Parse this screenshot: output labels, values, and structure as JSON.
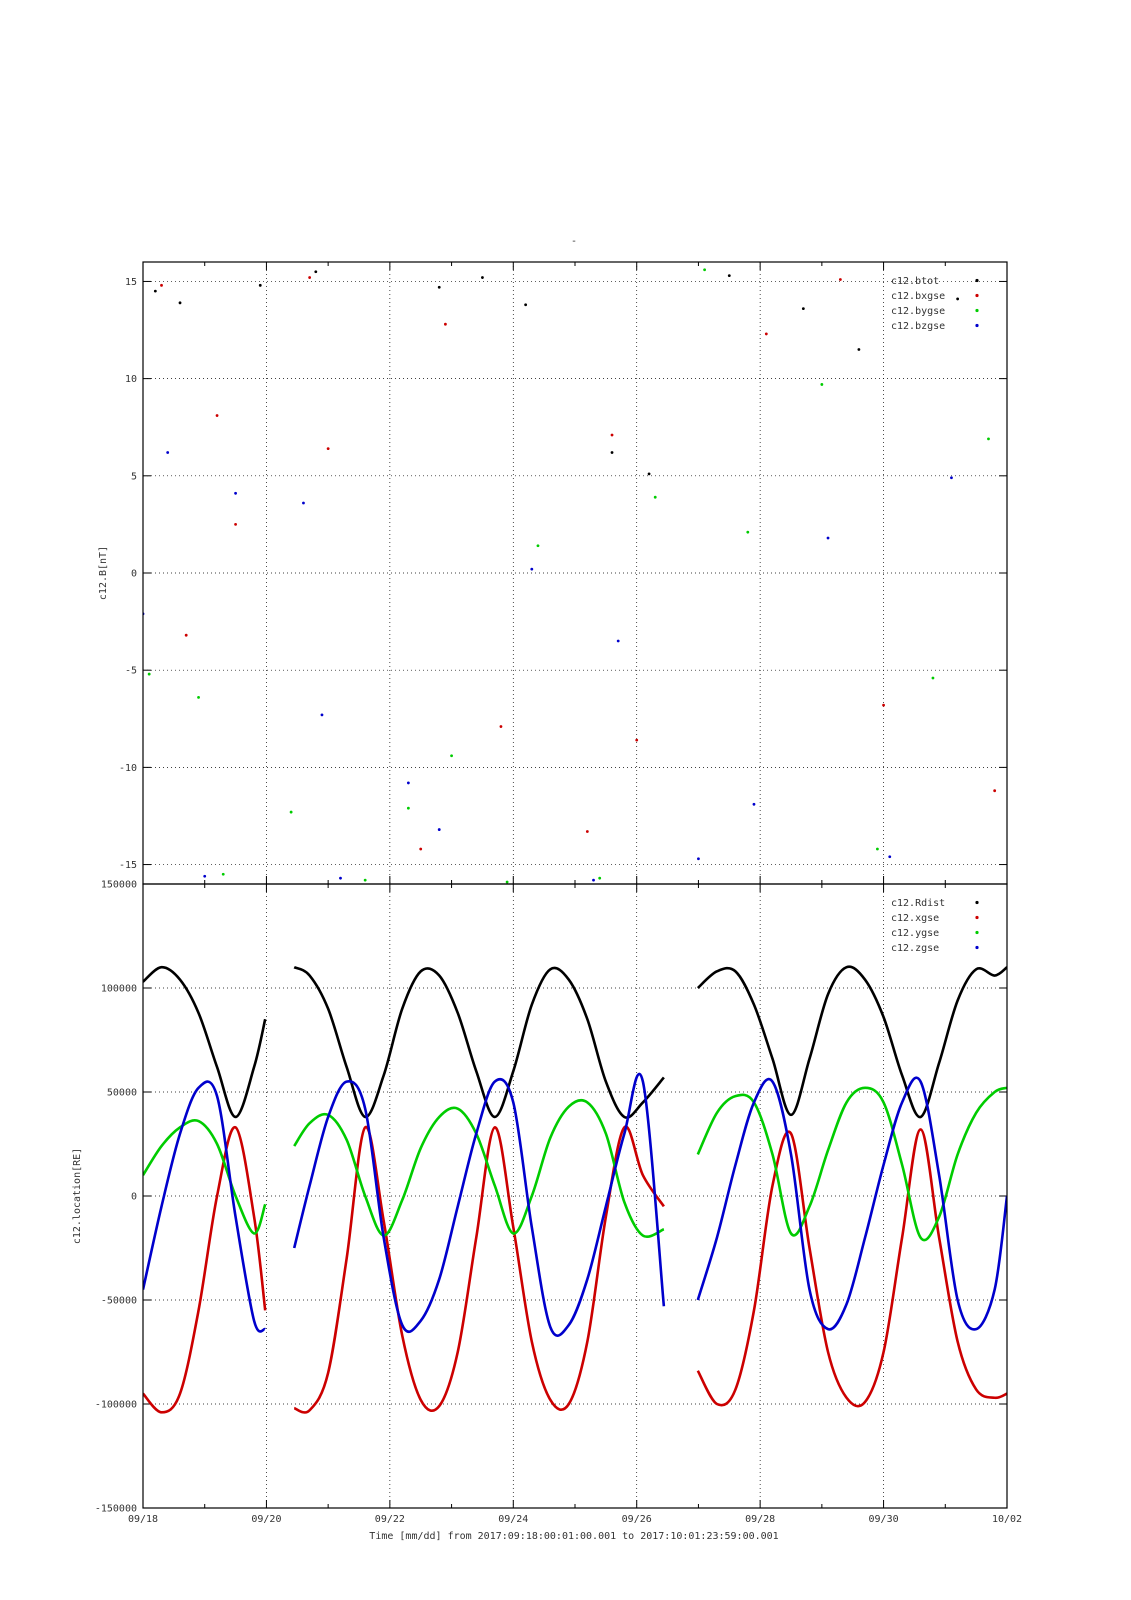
{
  "colors": {
    "black": "#000000",
    "red": "#cc0000",
    "green": "#00cc00",
    "blue": "#0000cc"
  },
  "top_title": "-",
  "footer_xlabel": "Time [mm/dd]  from 2017:09:18:00:01:00.001  to  2017:10:01:23:59:00.001",
  "chart_data": [
    {
      "type": "scatter",
      "ylabel": "c12.B[nT]",
      "ylim": [
        -16,
        16
      ],
      "yticks": [
        -15,
        -10,
        -5,
        0,
        5,
        10,
        15
      ],
      "ytick_labels": [
        "-15",
        "-10",
        "-5",
        "0",
        "5",
        "10",
        "15"
      ],
      "xlim": [
        0,
        14
      ],
      "grid": true,
      "legend": "top-right",
      "series": [
        {
          "name": "c12.btot",
          "color": "#000000",
          "x": [
            0.2,
            0.6,
            1.9,
            2.8,
            4.8,
            5.5,
            6.2,
            7.6,
            8.2,
            9.5,
            10.7,
            11.6,
            13.2
          ],
          "y": [
            14.5,
            13.9,
            14.8,
            15.5,
            14.7,
            15.2,
            13.8,
            6.2,
            5.1,
            15.3,
            13.6,
            11.5,
            14.1
          ]
        },
        {
          "name": "c12.bxgse",
          "color": "#cc0000",
          "x": [
            0.3,
            0.7,
            1.2,
            1.5,
            2.7,
            3.0,
            4.5,
            4.9,
            5.8,
            7.2,
            7.6,
            8.0,
            10.1,
            11.3,
            12.0,
            13.8
          ],
          "y": [
            14.8,
            -3.2,
            8.1,
            2.5,
            15.2,
            6.4,
            -14.2,
            12.8,
            -7.9,
            -13.3,
            7.1,
            -8.6,
            12.3,
            15.1,
            -6.8,
            -11.2
          ]
        },
        {
          "name": "c12.bygse",
          "color": "#00cc00",
          "x": [
            0.1,
            0.9,
            1.3,
            2.4,
            3.6,
            4.3,
            5.0,
            5.9,
            6.4,
            7.4,
            8.3,
            9.1,
            9.8,
            11.0,
            11.9,
            12.8,
            13.7
          ],
          "y": [
            -5.2,
            -6.4,
            -15.5,
            -12.3,
            -15.8,
            -12.1,
            -9.4,
            -15.9,
            1.4,
            -15.7,
            3.9,
            15.6,
            2.1,
            9.7,
            -14.2,
            -5.4,
            6.9
          ]
        },
        {
          "name": "c12.bzgse",
          "color": "#0000cc",
          "x": [
            0.0,
            0.4,
            1.0,
            1.5,
            2.6,
            2.9,
            3.2,
            4.3,
            4.8,
            6.3,
            7.3,
            7.7,
            9.0,
            9.9,
            11.1,
            12.1,
            13.1
          ],
          "y": [
            -2.1,
            6.2,
            -15.6,
            4.1,
            3.6,
            -7.3,
            -15.7,
            -10.8,
            -13.2,
            0.2,
            -15.8,
            -3.5,
            -14.7,
            -11.9,
            1.8,
            -14.6,
            4.9
          ]
        }
      ]
    },
    {
      "type": "line",
      "ylabel": "c12.location[RE]",
      "ylim": [
        -150000,
        150000
      ],
      "yticks": [
        -150000,
        -100000,
        -50000,
        0,
        50000,
        100000,
        150000
      ],
      "ytick_labels": [
        "-150000",
        "-100000",
        "-50000",
        "0",
        "50000",
        "100000",
        "150000"
      ],
      "xlim": [
        0,
        14
      ],
      "xticks": [
        0,
        2,
        4,
        6,
        8,
        10,
        12,
        14
      ],
      "xtick_labels": [
        "09/18",
        "09/20",
        "09/22",
        "09/24",
        "09/26",
        "09/28",
        "09/30",
        "10/02"
      ],
      "grid": true,
      "legend": "top-right",
      "segments": [
        [
          0,
          1.98
        ],
        [
          2.45,
          8.44
        ],
        [
          8.99,
          14.0
        ]
      ],
      "series": [
        {
          "name": "c12.Rdist",
          "color": "#000000",
          "x": [
            0.0,
            0.3,
            0.6,
            0.9,
            1.2,
            1.5,
            1.8,
            1.98,
            2.45,
            2.7,
            3.0,
            3.3,
            3.6,
            3.9,
            4.2,
            4.5,
            4.8,
            5.1,
            5.4,
            5.7,
            6.0,
            6.3,
            6.6,
            6.9,
            7.2,
            7.5,
            7.8,
            8.1,
            8.44,
            8.99,
            9.3,
            9.6,
            9.9,
            10.2,
            10.5,
            10.8,
            11.1,
            11.4,
            11.7,
            12.0,
            12.3,
            12.6,
            12.9,
            13.2,
            13.5,
            13.8,
            14.0
          ],
          "y": [
            103000,
            110000,
            104000,
            88000,
            62000,
            38000,
            62000,
            85000,
            110000,
            106000,
            90000,
            62000,
            38000,
            58000,
            90000,
            108000,
            106000,
            88000,
            60000,
            38000,
            60000,
            92000,
            109000,
            104000,
            85000,
            55000,
            38000,
            45000,
            57000,
            100000,
            108000,
            108000,
            92000,
            66000,
            39000,
            66000,
            97000,
            110000,
            104000,
            86000,
            58000,
            38000,
            64000,
            94000,
            109000,
            106000,
            110000
          ]
        },
        {
          "name": "c12.xgse",
          "color": "#cc0000",
          "x": [
            0.0,
            0.3,
            0.6,
            0.9,
            1.2,
            1.5,
            1.8,
            1.98,
            2.45,
            2.7,
            3.0,
            3.3,
            3.6,
            3.9,
            4.2,
            4.5,
            4.8,
            5.1,
            5.4,
            5.7,
            6.0,
            6.3,
            6.6,
            6.9,
            7.2,
            7.5,
            7.8,
            8.1,
            8.44,
            8.99,
            9.3,
            9.6,
            9.9,
            10.2,
            10.5,
            10.8,
            11.1,
            11.4,
            11.7,
            12.0,
            12.3,
            12.6,
            12.9,
            13.2,
            13.5,
            13.8,
            14.0
          ],
          "y": [
            -95000,
            -104000,
            -95000,
            -55000,
            0,
            33000,
            -10000,
            -55000,
            -102000,
            -103000,
            -85000,
            -30000,
            33000,
            -12000,
            -67000,
            -98000,
            -101000,
            -75000,
            -20000,
            33000,
            -15000,
            -70000,
            -98000,
            -100000,
            -70000,
            -10000,
            33000,
            10000,
            -5000,
            -84000,
            -100000,
            -93000,
            -55000,
            5000,
            30000,
            -25000,
            -75000,
            -97000,
            -99000,
            -75000,
            -20000,
            32000,
            -20000,
            -70000,
            -93000,
            -97000,
            -95000
          ]
        },
        {
          "name": "c12.ygse",
          "color": "#00cc00",
          "x": [
            0.0,
            0.3,
            0.6,
            0.9,
            1.2,
            1.5,
            1.8,
            1.98,
            2.45,
            2.7,
            3.0,
            3.3,
            3.6,
            3.9,
            4.2,
            4.5,
            4.8,
            5.1,
            5.4,
            5.7,
            6.0,
            6.3,
            6.6,
            6.9,
            7.2,
            7.5,
            7.8,
            8.1,
            8.44,
            8.99,
            9.3,
            9.6,
            9.9,
            10.2,
            10.5,
            10.8,
            11.1,
            11.4,
            11.7,
            12.0,
            12.3,
            12.6,
            12.9,
            13.2,
            13.5,
            13.8,
            14.0
          ],
          "y": [
            10000,
            24000,
            33000,
            36000,
            25000,
            0,
            -18000,
            -4000,
            24000,
            35000,
            39000,
            27000,
            0,
            -19000,
            -2000,
            23000,
            38000,
            42000,
            30000,
            5000,
            -18000,
            0,
            28000,
            43000,
            45000,
            30000,
            -3000,
            -19000,
            -16000,
            20000,
            40000,
            48000,
            45000,
            20000,
            -18000,
            -5000,
            22000,
            45000,
            52000,
            45000,
            15000,
            -20000,
            -10000,
            20000,
            40000,
            50000,
            52000
          ]
        },
        {
          "name": "c12.zgse",
          "color": "#0000cc",
          "x": [
            0.0,
            0.3,
            0.6,
            0.9,
            1.2,
            1.5,
            1.8,
            1.98,
            2.45,
            2.7,
            3.0,
            3.3,
            3.6,
            3.9,
            4.2,
            4.5,
            4.8,
            5.1,
            5.4,
            5.7,
            6.0,
            6.3,
            6.6,
            6.9,
            7.2,
            7.5,
            7.8,
            8.1,
            8.44,
            8.99,
            9.3,
            9.6,
            9.9,
            10.2,
            10.5,
            10.8,
            11.1,
            11.4,
            11.7,
            12.0,
            12.3,
            12.6,
            12.9,
            13.2,
            13.5,
            13.8,
            14.0
          ],
          "y": [
            -45000,
            -5000,
            30000,
            52000,
            48000,
            -10000,
            -60000,
            -64000,
            -25000,
            5000,
            38000,
            55000,
            42000,
            -20000,
            -62000,
            -60000,
            -40000,
            -5000,
            30000,
            55000,
            45000,
            -15000,
            -63000,
            -62000,
            -40000,
            -5000,
            30000,
            55000,
            -53000,
            -50000,
            -20000,
            15000,
            45000,
            55000,
            20000,
            -45000,
            -64000,
            -52000,
            -20000,
            15000,
            45000,
            55000,
            10000,
            -50000,
            -64000,
            -45000,
            0
          ]
        }
      ]
    }
  ]
}
